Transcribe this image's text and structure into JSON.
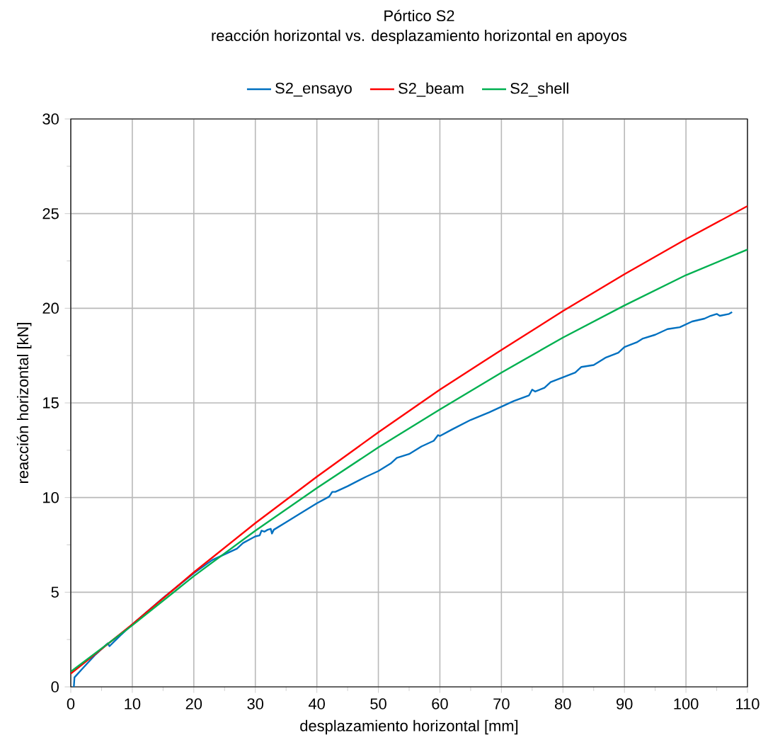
{
  "chart_data": {
    "type": "line",
    "title": "Pórtico S2",
    "subtitle": "reacción horizontal vs. desplazamiento horizontal en apoyos",
    "xlabel": "desplazamiento horizontal [mm]",
    "ylabel": "reacción horizontal [kN]",
    "xlim": [
      0,
      110
    ],
    "ylim": [
      0,
      30
    ],
    "xticks": [
      0,
      10,
      20,
      30,
      40,
      50,
      60,
      70,
      80,
      90,
      100,
      110
    ],
    "yticks": [
      0,
      5,
      10,
      15,
      20,
      25,
      30
    ],
    "grid": true,
    "legend": "top",
    "marker": "none",
    "line_style": "solid",
    "series": [
      {
        "name": "S2_ensayo",
        "color": "#0070c0",
        "x": [
          0.5,
          0.6,
          2,
          4,
          5,
          6,
          6.3,
          8,
          10,
          15,
          20,
          23,
          25,
          27,
          28,
          30,
          30.7,
          31,
          31.5,
          32,
          32.5,
          32.7,
          33,
          35,
          37,
          40,
          42,
          42.5,
          43,
          45,
          48,
          50,
          52,
          53,
          55,
          57,
          59,
          59.7,
          60,
          62,
          65,
          68,
          70,
          72,
          74.5,
          75,
          75.5,
          77,
          78,
          80,
          82,
          83,
          85,
          87,
          89,
          90,
          92,
          93,
          95,
          97,
          99,
          101,
          103,
          104,
          105,
          105.5,
          107,
          107.5
        ],
        "values": [
          0,
          0.5,
          1.0,
          1.7,
          2.0,
          2.3,
          2.15,
          2.7,
          3.3,
          4.7,
          6.0,
          6.7,
          7.0,
          7.3,
          7.6,
          7.95,
          8.0,
          8.25,
          8.2,
          8.3,
          8.35,
          8.1,
          8.3,
          8.7,
          9.1,
          9.7,
          10.05,
          10.3,
          10.3,
          10.6,
          11.1,
          11.4,
          11.8,
          12.1,
          12.3,
          12.7,
          13.0,
          13.3,
          13.25,
          13.6,
          14.1,
          14.5,
          14.8,
          15.1,
          15.4,
          15.7,
          15.6,
          15.8,
          16.1,
          16.35,
          16.6,
          16.9,
          17.0,
          17.4,
          17.65,
          17.95,
          18.2,
          18.4,
          18.6,
          18.9,
          19.0,
          19.3,
          19.45,
          19.6,
          19.7,
          19.6,
          19.7,
          19.8
        ]
      },
      {
        "name": "S2_beam",
        "color": "#ff0000",
        "x": [
          0,
          10,
          20,
          30,
          40,
          50,
          60,
          70,
          80,
          90,
          100,
          110
        ],
        "values": [
          0.7,
          3.3,
          6.05,
          8.65,
          11.1,
          13.45,
          15.7,
          17.8,
          19.85,
          21.8,
          23.65,
          25.4
        ]
      },
      {
        "name": "S2_shell",
        "color": "#00b050",
        "x": [
          0,
          10,
          20,
          30,
          40,
          50,
          60,
          70,
          80,
          90,
          100,
          110
        ],
        "values": [
          0.8,
          3.25,
          5.85,
          8.25,
          10.5,
          12.65,
          14.65,
          16.6,
          18.45,
          20.15,
          21.75,
          23.1
        ]
      }
    ]
  }
}
